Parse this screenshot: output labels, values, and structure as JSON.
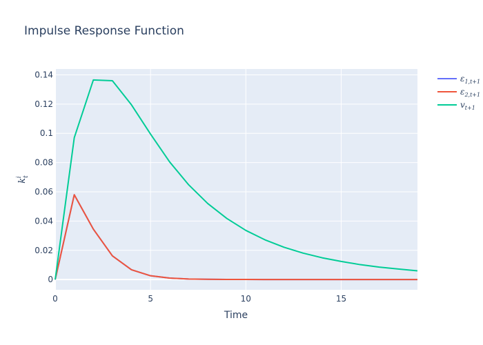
{
  "chart_data": {
    "type": "line",
    "title": "Impulse Response Function",
    "xlabel": "Time",
    "ylabel": "k_t^i",
    "xlim": [
      0,
      19
    ],
    "ylim": [
      -0.007,
      0.144
    ],
    "xticks": [
      0,
      5,
      10,
      15
    ],
    "yticks": [
      0,
      0.02,
      0.04,
      0.06,
      0.08,
      0.1,
      0.12,
      0.14
    ],
    "ytick_labels": [
      "0",
      "0.02",
      "0.04",
      "0.06",
      "0.08",
      "0.1",
      "0.12",
      "0.14"
    ],
    "x": [
      0,
      1,
      2,
      3,
      4,
      5,
      6,
      7,
      8,
      9,
      10,
      11,
      12,
      13,
      14,
      15,
      16,
      17,
      18,
      19
    ],
    "grid": true,
    "legend_position": "right",
    "background": "#e5ecf6",
    "series": [
      {
        "name": "ε_{1,t+1}",
        "legend_main": "ε",
        "legend_sub": "1,t+1",
        "color": "#636efa",
        "values": [
          0,
          0.058,
          0.0345,
          0.0162,
          0.0067,
          0.0026,
          0.001,
          0.0004,
          0.0002,
          0.0001,
          5e-05,
          2e-05,
          1e-05,
          0,
          0,
          0,
          0,
          0,
          0,
          0
        ]
      },
      {
        "name": "ε_{2,t+1}",
        "legend_main": "ε",
        "legend_sub": "2,t+1",
        "color": "#ef553b",
        "values": [
          0,
          0.058,
          0.0345,
          0.0162,
          0.0067,
          0.0026,
          0.001,
          0.0004,
          0.0002,
          0.0001,
          5e-05,
          2e-05,
          1e-05,
          0,
          0,
          0,
          0,
          0,
          0,
          0
        ]
      },
      {
        "name": "v_{t+1}",
        "legend_main": "v",
        "legend_sub": "t+1",
        "color": "#00cc96",
        "values": [
          0,
          0.097,
          0.1365,
          0.136,
          0.1195,
          0.0995,
          0.0805,
          0.0648,
          0.052,
          0.0418,
          0.0336,
          0.0272,
          0.0221,
          0.0181,
          0.0149,
          0.0124,
          0.0102,
          0.0085,
          0.0072,
          0.006
        ]
      }
    ]
  }
}
